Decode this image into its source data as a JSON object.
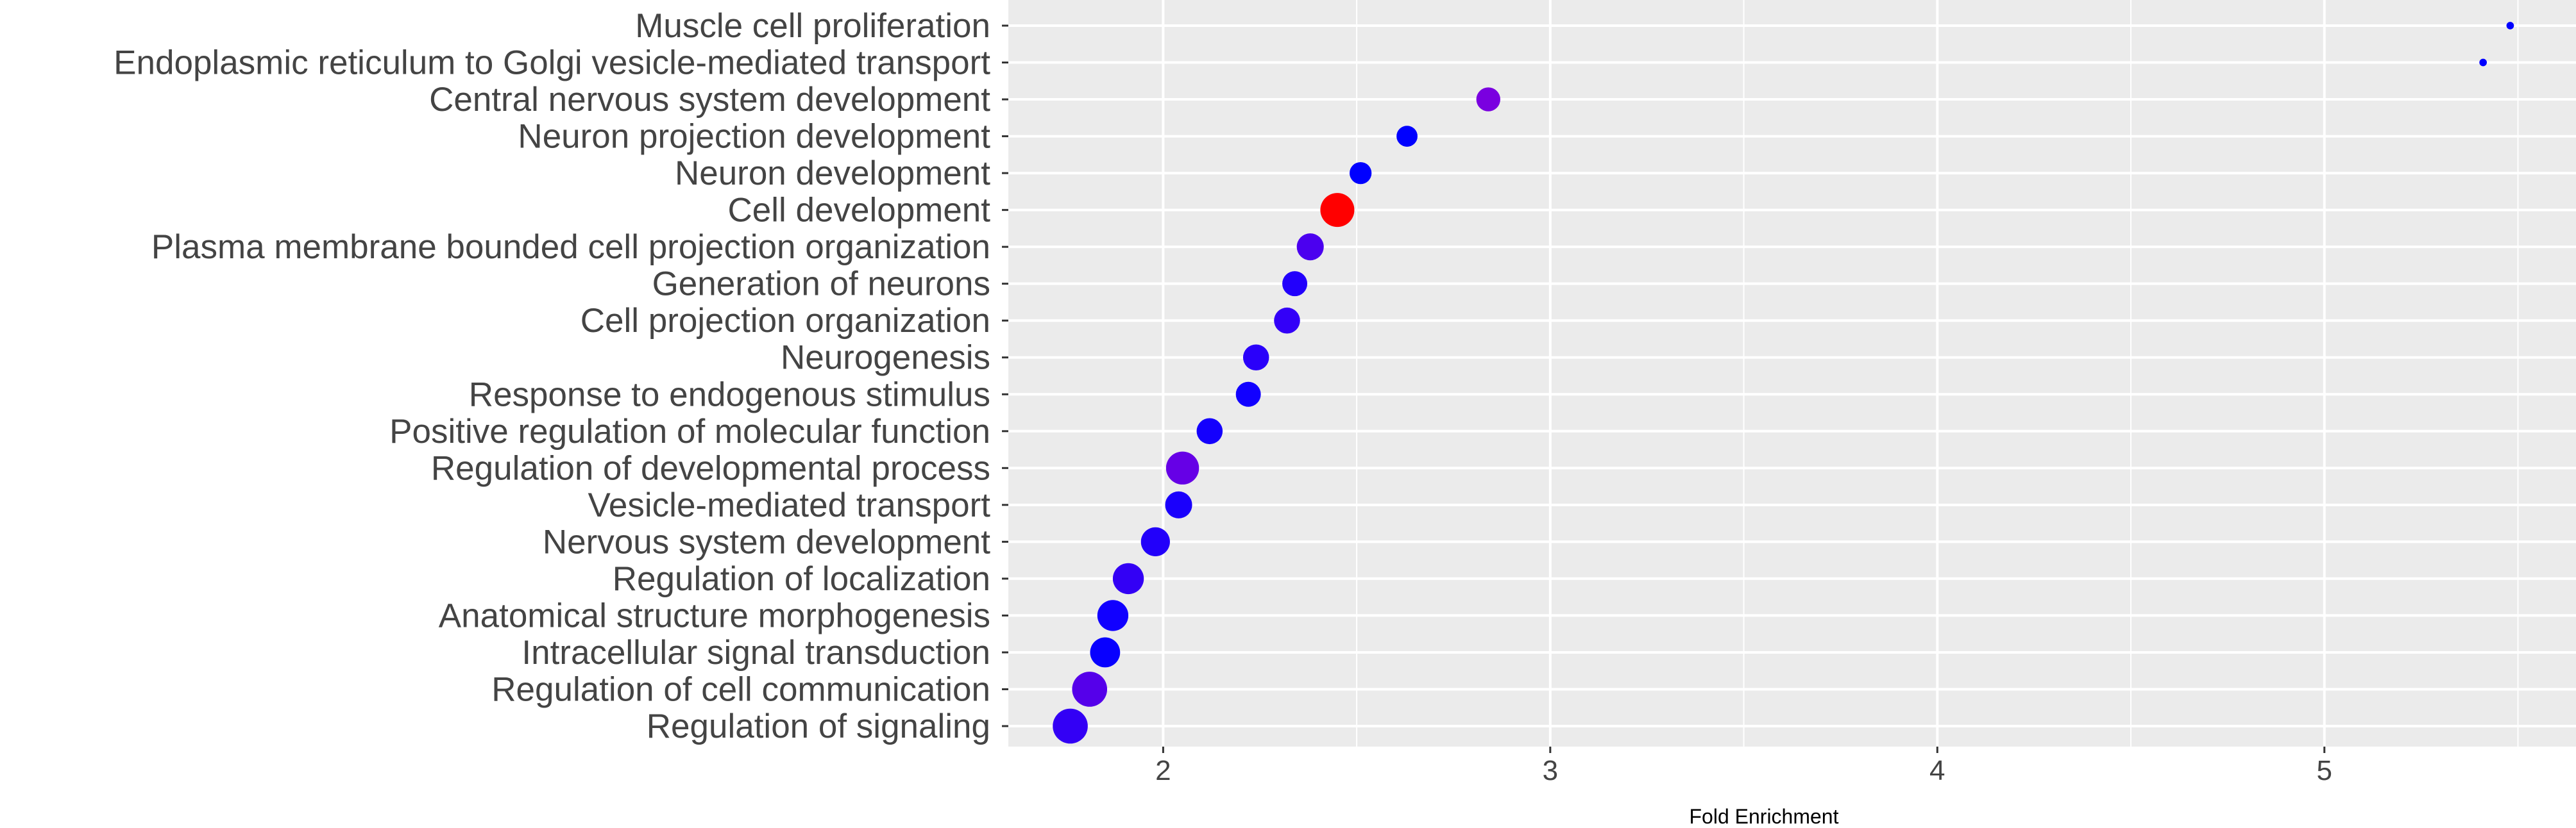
{
  "chart_data": {
    "type": "scatter",
    "title": "",
    "xlabel": "Fold Enrichment",
    "ylabel": "",
    "xlim": [
      1.6,
      5.65
    ],
    "x_ticks": [
      "2",
      "3",
      "4",
      "5"
    ],
    "grid": true,
    "legend": "none",
    "background": "#EBEBEB",
    "categories": [
      "Muscle cell proliferation",
      "Endoplasmic reticulum to Golgi vesicle-mediated transport",
      "Central nervous system development",
      "Neuron projection development",
      "Neuron development",
      "Cell development",
      "Plasma membrane bounded cell projection organization",
      "Generation of neurons",
      "Cell projection organization",
      "Neurogenesis",
      "Response to endogenous stimulus",
      "Positive regulation of molecular function",
      "Regulation of developmental process",
      "Vesicle-mediated transport",
      "Nervous system development",
      "Regulation of localization",
      "Anatomical structure morphogenesis",
      "Intracellular signal transduction",
      "Regulation of cell communication",
      "Regulation of signaling"
    ],
    "points": [
      {
        "x": 5.48,
        "size": 1.5,
        "color": "#0000FF"
      },
      {
        "x": 5.41,
        "size": 1.5,
        "color": "#0000FF"
      },
      {
        "x": 2.84,
        "size": 4.8,
        "color": "#7A00E0"
      },
      {
        "x": 2.63,
        "size": 4.2,
        "color": "#0000FF"
      },
      {
        "x": 2.51,
        "size": 4.4,
        "color": "#0000FF"
      },
      {
        "x": 2.45,
        "size": 6.8,
        "color": "#FF0000"
      },
      {
        "x": 2.38,
        "size": 5.4,
        "color": "#4B00EF"
      },
      {
        "x": 2.34,
        "size": 5.0,
        "color": "#2200FC"
      },
      {
        "x": 2.32,
        "size": 5.2,
        "color": "#3300F8"
      },
      {
        "x": 2.24,
        "size": 5.2,
        "color": "#2A00FA"
      },
      {
        "x": 2.22,
        "size": 5.0,
        "color": "#1100FF"
      },
      {
        "x": 2.12,
        "size": 5.2,
        "color": "#1400FD"
      },
      {
        "x": 2.05,
        "size": 6.6,
        "color": "#6600E6"
      },
      {
        "x": 2.04,
        "size": 5.4,
        "color": "#1A00FC"
      },
      {
        "x": 1.98,
        "size": 5.8,
        "color": "#2200FA"
      },
      {
        "x": 1.91,
        "size": 6.2,
        "color": "#3300F5"
      },
      {
        "x": 1.87,
        "size": 6.2,
        "color": "#1100FF"
      },
      {
        "x": 1.85,
        "size": 6.0,
        "color": "#0800FF"
      },
      {
        "x": 1.81,
        "size": 7.0,
        "color": "#5500EA"
      },
      {
        "x": 1.76,
        "size": 7.0,
        "color": "#3300F5"
      }
    ]
  }
}
